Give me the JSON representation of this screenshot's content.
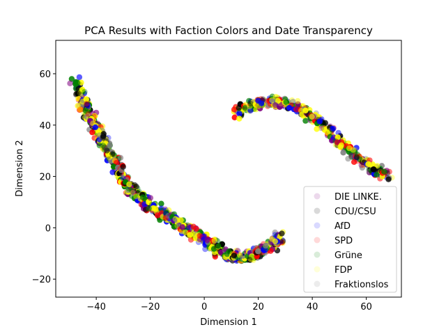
{
  "chart_data": {
    "type": "scatter",
    "title": "PCA Results with Faction Colors and Date Transparency",
    "xlabel": "Dimension 1",
    "ylabel": "Dimension 2",
    "xlim": [
      -55,
      73
    ],
    "ylim": [
      -27,
      73
    ],
    "xticks": [
      -40,
      -20,
      0,
      20,
      40,
      60
    ],
    "yticks": [
      -20,
      0,
      20,
      40,
      60
    ],
    "grid": false,
    "legend_position": "lower-right",
    "series": [
      {
        "name": "DIE LINKE.",
        "color": "#800080"
      },
      {
        "name": "CDU/CSU",
        "color": "#000000"
      },
      {
        "name": "AfD",
        "color": "#0000ff"
      },
      {
        "name": "SPD",
        "color": "#ff0000"
      },
      {
        "name": "Grüne",
        "color": "#008000"
      },
      {
        "name": "FDP",
        "color": "#ffff00"
      },
      {
        "name": "Fraktionslos",
        "color": "#808080"
      }
    ],
    "clusters": [
      {
        "shape": "arc",
        "description": "main arc",
        "points": [
          [
            -48,
            58
          ],
          [
            -46,
            52
          ],
          [
            -44,
            47
          ],
          [
            -42,
            43
          ],
          [
            -40,
            39
          ],
          [
            -38,
            35
          ],
          [
            -36,
            31
          ],
          [
            -34,
            27
          ],
          [
            -32,
            23
          ],
          [
            -30,
            19
          ],
          [
            -28,
            16
          ],
          [
            -25,
            13
          ],
          [
            -22,
            10
          ],
          [
            -19,
            8
          ],
          [
            -16,
            6
          ],
          [
            -13,
            4
          ],
          [
            -10,
            2
          ],
          [
            -7,
            0
          ],
          [
            -4,
            -2
          ],
          [
            -1,
            -4
          ],
          [
            2,
            -6
          ],
          [
            5,
            -8
          ],
          [
            8,
            -10
          ],
          [
            11,
            -11
          ],
          [
            14,
            -12
          ],
          [
            17,
            -11
          ],
          [
            20,
            -10
          ],
          [
            23,
            -8
          ],
          [
            26,
            -6
          ],
          [
            28,
            -3
          ]
        ]
      },
      {
        "shape": "arc",
        "description": "upper-right arc",
        "points": [
          [
            12,
            45
          ],
          [
            16,
            47
          ],
          [
            20,
            48
          ],
          [
            24,
            49
          ],
          [
            28,
            49
          ],
          [
            32,
            48
          ],
          [
            36,
            46
          ],
          [
            40,
            43
          ],
          [
            44,
            40
          ],
          [
            48,
            36
          ],
          [
            52,
            32
          ],
          [
            56,
            28
          ],
          [
            60,
            25
          ],
          [
            64,
            22
          ],
          [
            68,
            20
          ]
        ]
      }
    ]
  }
}
